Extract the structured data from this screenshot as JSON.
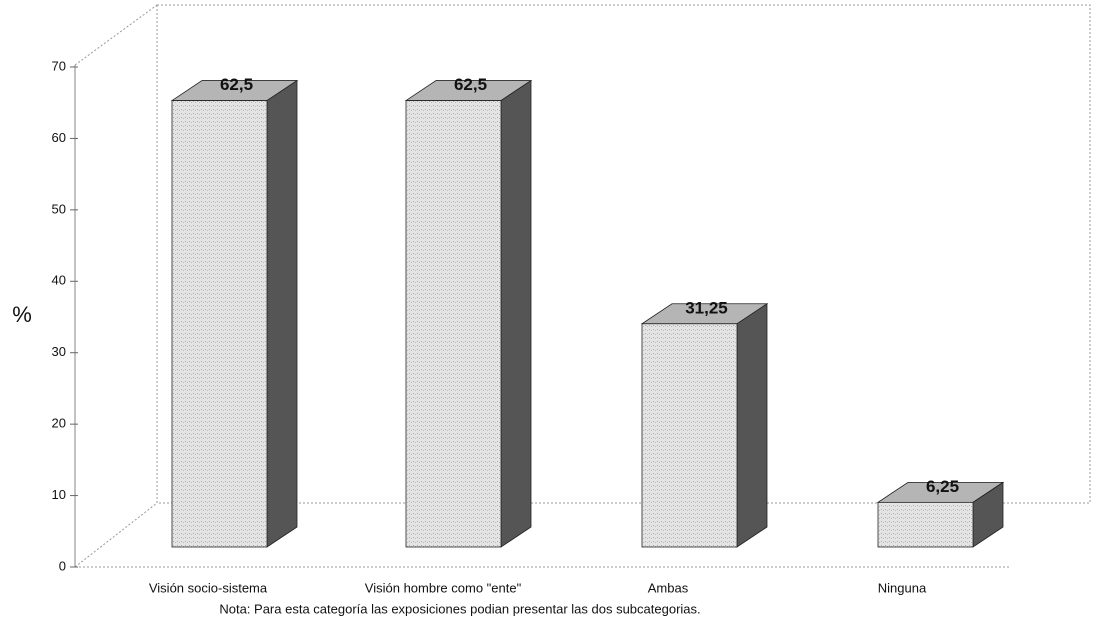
{
  "chart_data": {
    "type": "bar",
    "ylabel": "%",
    "categories": [
      "Visión socio-sistema",
      "Visión hombre como \"ente\"",
      "Ambas",
      "Ninguna"
    ],
    "values": [
      62.5,
      62.5,
      31.25,
      6.25
    ],
    "value_labels": [
      "62,5",
      "62,5",
      "31,25",
      "6,25"
    ],
    "color": "#dedede",
    "ylim": [
      0,
      70
    ],
    "yticks": [
      0,
      10,
      20,
      30,
      40,
      50,
      60,
      70
    ],
    "note": "Nota: Para esta categoría las exposiciones podian presentar las dos subcategorias."
  }
}
